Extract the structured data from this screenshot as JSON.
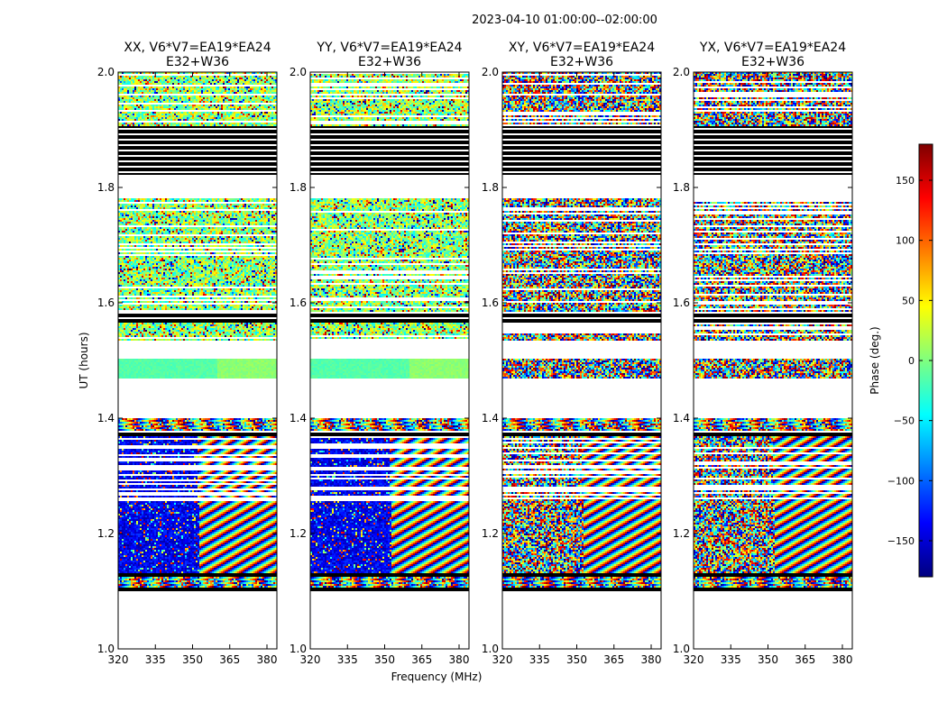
{
  "figure": {
    "suptitle": "2023-04-10  01:00:00--02:00:00",
    "xlabel": "Frequency (MHz)",
    "ylabel": "UT (hours)"
  },
  "chart_data": {
    "type": "heatmap",
    "description_units": {
      "x": "MHz",
      "y": "hours",
      "z": "deg"
    },
    "panels": [
      {
        "name": "XX",
        "title_line1": "XX, V6*V7=EA19*EA24",
        "title_line2": "E32+W36",
        "style": "parallel"
      },
      {
        "name": "YY",
        "title_line1": "YY, V6*V7=EA19*EA24",
        "title_line2": "E32+W36",
        "style": "parallel"
      },
      {
        "name": "XY",
        "title_line1": "XY, V6*V7=EA19*EA24",
        "title_line2": "E32+W36",
        "style": "cross"
      },
      {
        "name": "YX",
        "title_line1": "YX, V6*V7=EA19*EA24",
        "title_line2": "E32+W36",
        "style": "cross"
      }
    ],
    "xlim": [
      320,
      384
    ],
    "ylim": [
      1.0,
      2.0
    ],
    "xticks": [
      320,
      335,
      350,
      365,
      380
    ],
    "xtick_labels": [
      "320",
      "335",
      "350",
      "365",
      "380"
    ],
    "yticks": [
      1.0,
      1.2,
      1.4,
      1.6,
      1.8,
      2.0
    ],
    "ytick_labels": [
      "1.0",
      "1.2",
      "1.4",
      "1.6",
      "1.8",
      "2.0"
    ],
    "time_segments": [
      {
        "t0": 1.1,
        "t1": 1.107,
        "kind": "flagged"
      },
      {
        "t0": 1.107,
        "t1": 1.125,
        "kind": "fringe"
      },
      {
        "t0": 1.125,
        "t1": 1.131,
        "kind": "flagged"
      },
      {
        "t0": 1.131,
        "t1": 1.255,
        "kind": "low",
        "split_freq": 353
      },
      {
        "t0": 1.255,
        "t1": 1.37,
        "kind": "low_stripes",
        "split_freq": 352
      },
      {
        "t0": 1.37,
        "t1": 1.378,
        "kind": "black_stripes"
      },
      {
        "t0": 1.378,
        "t1": 1.4,
        "kind": "fringe"
      },
      {
        "t0": 1.47,
        "t1": 1.502,
        "kind": "calib"
      },
      {
        "t0": 1.533,
        "t1": 1.565,
        "kind": "noise_stripes"
      },
      {
        "t0": 1.565,
        "t1": 1.585,
        "kind": "black_stripes"
      },
      {
        "t0": 1.585,
        "t1": 1.782,
        "kind": "noise_stripes"
      },
      {
        "t0": 1.822,
        "t1": 1.905,
        "kind": "black_stripes"
      },
      {
        "t0": 1.905,
        "t1": 2.0,
        "kind": "top"
      }
    ],
    "colorbar": {
      "label": "Phase (deg.)",
      "min": -180,
      "max": 180,
      "ticks": [
        -150,
        -100,
        -50,
        0,
        50,
        100,
        150
      ],
      "tick_labels": [
        "−150",
        "−100",
        "−50",
        "0",
        "50",
        "100",
        "150"
      ],
      "colormap": "jet",
      "stops": [
        "#00007f",
        "#0000ff",
        "#007fff",
        "#00ffff",
        "#7fff7f",
        "#ffff00",
        "#ff7f00",
        "#ff0000",
        "#7f0000"
      ]
    }
  }
}
